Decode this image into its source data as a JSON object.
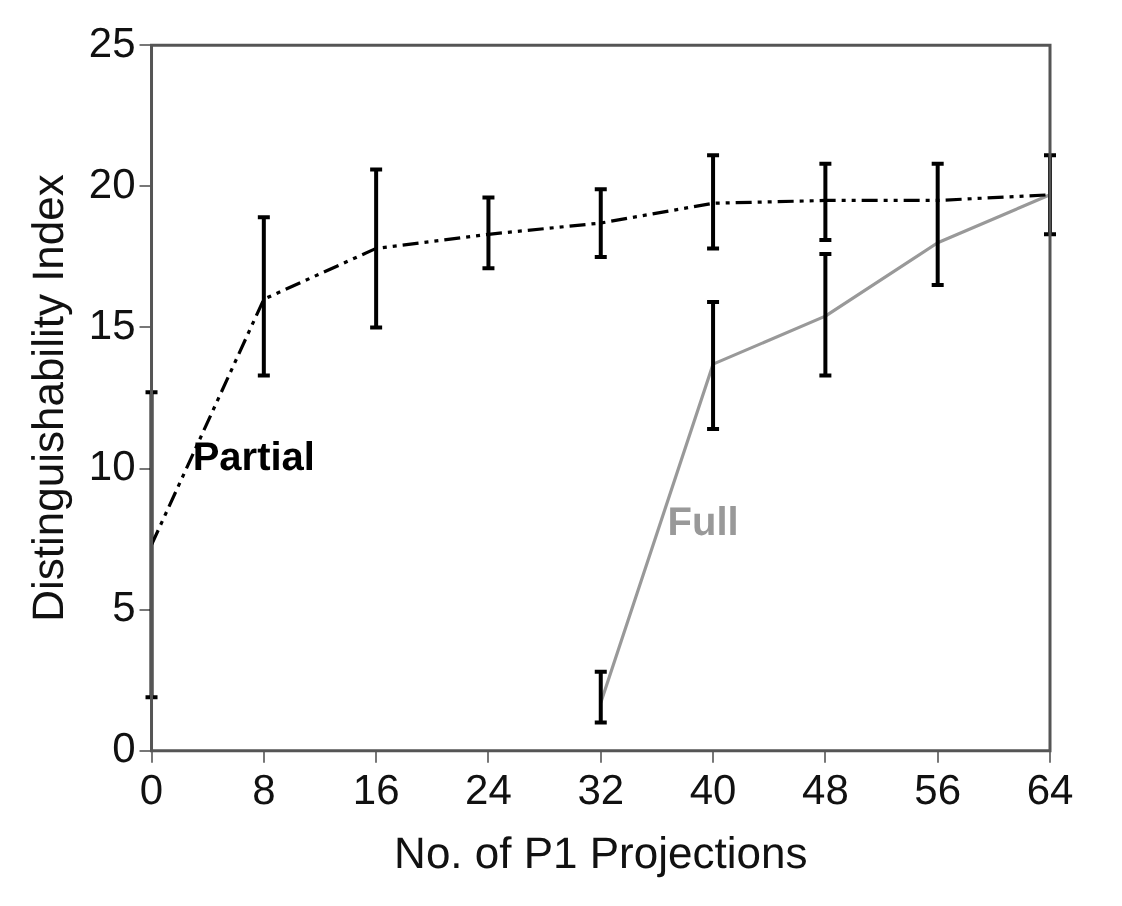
{
  "chart_data": {
    "type": "line",
    "xlabel": "No. of P1 Projections",
    "ylabel": "Distinguishability Index",
    "xlim": [
      0,
      64
    ],
    "xticks": [
      0,
      8,
      16,
      24,
      32,
      40,
      48,
      56,
      64
    ],
    "ylim": [
      0,
      25
    ],
    "yticks": [
      0,
      5,
      10,
      15,
      20,
      25
    ],
    "grid": false,
    "legend": false,
    "marker": "none",
    "series": [
      {
        "name": "Partial",
        "color": "#000000",
        "line_style": "dashed",
        "x": [
          0,
          8,
          16,
          24,
          32,
          40,
          48,
          56,
          64
        ],
        "values": [
          7.3,
          16.0,
          17.8,
          18.3,
          18.7,
          19.4,
          19.5,
          19.5,
          19.7
        ],
        "errors": [
          [
            1.9,
            12.7
          ],
          [
            13.3,
            18.9
          ],
          [
            15.0,
            20.6
          ],
          [
            17.1,
            19.6
          ],
          [
            17.5,
            19.9
          ],
          [
            17.8,
            21.1
          ],
          [
            18.1,
            20.8
          ],
          [
            16.5,
            20.8
          ],
          [
            18.3,
            21.1
          ]
        ]
      },
      {
        "name": "Full",
        "color": "#999999",
        "line_style": "solid",
        "x": [
          32,
          40,
          48,
          56,
          64
        ],
        "values": [
          1.7,
          13.7,
          15.4,
          18.0,
          19.7
        ],
        "errors": [
          [
            1.0,
            2.8
          ],
          [
            11.4,
            15.9
          ],
          [
            13.3,
            17.6
          ],
          null,
          null
        ]
      }
    ]
  }
}
